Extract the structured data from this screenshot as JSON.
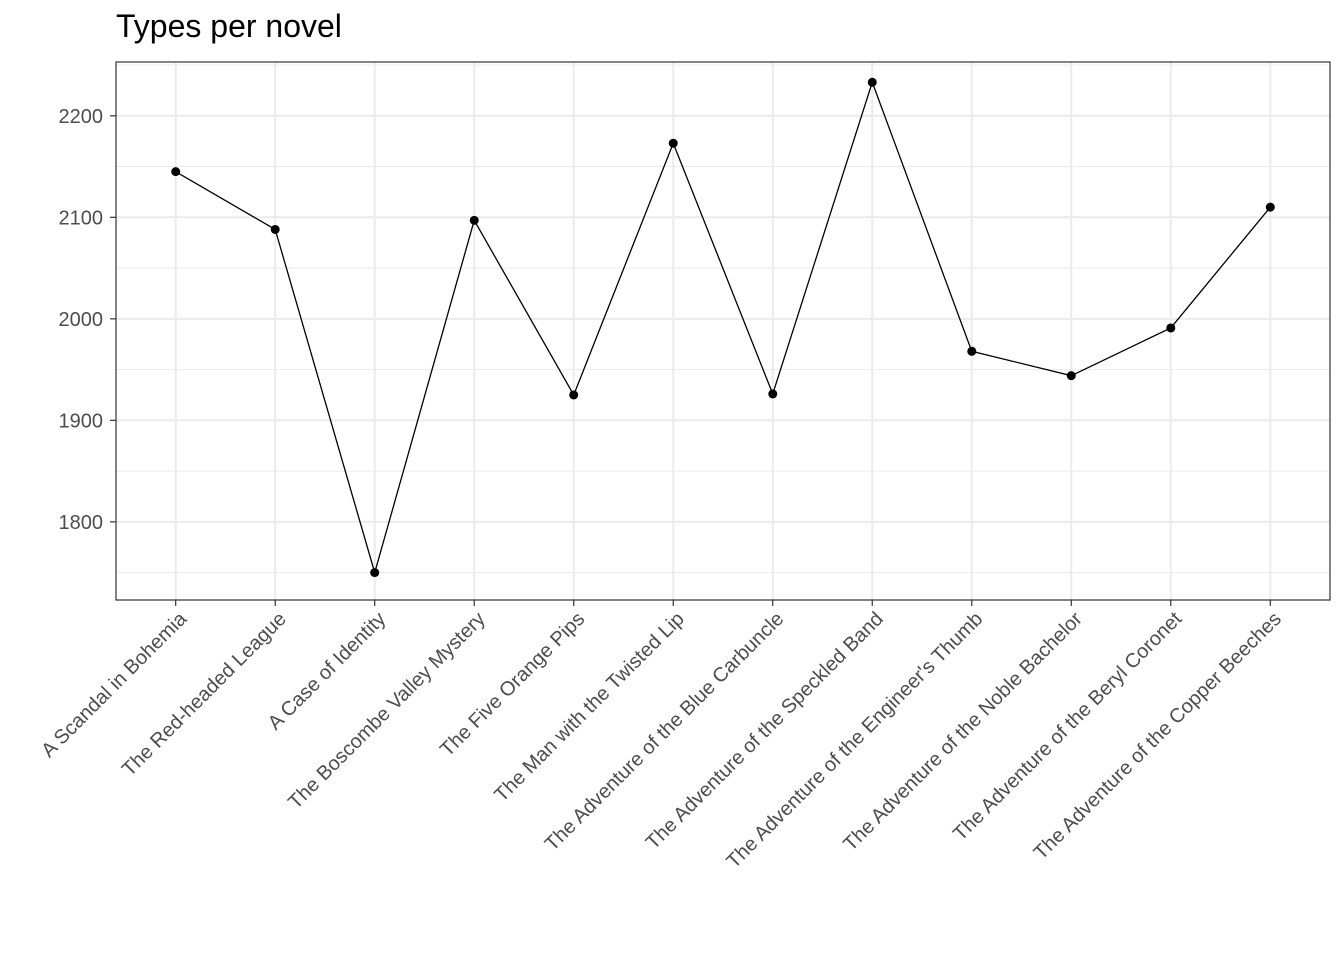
{
  "chart_data": {
    "type": "line",
    "title": "Types per novel",
    "xlabel": "",
    "ylabel": "",
    "categories": [
      "A Scandal in Bohemia",
      "The Red-headed League",
      "A Case of Identity",
      "The Boscombe Valley Mystery",
      "The Five Orange Pips",
      "The Man with the Twisted Lip",
      "The Adventure of the Blue Carbuncle",
      "The Adventure of the Speckled Band",
      "The Adventure of the Engineer's Thumb",
      "The Adventure of the Noble Bachelor",
      "The Adventure of the Beryl Coronet",
      "The Adventure of the Copper Beeches"
    ],
    "values": [
      2145,
      2088,
      1750,
      2097,
      1925,
      2173,
      1926,
      2233,
      1968,
      1944,
      1991,
      2110
    ],
    "ylim": [
      1723,
      2253
    ],
    "yticks": [
      1800,
      1900,
      2000,
      2100,
      2200
    ],
    "grid": true,
    "line_color": "#000000",
    "point_color": "#000000",
    "grid_color": "#ebebeb",
    "panel_border_color": "#333333"
  }
}
